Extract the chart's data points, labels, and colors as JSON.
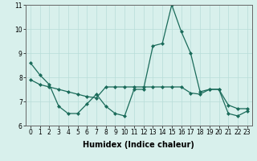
{
  "x": [
    0,
    1,
    2,
    3,
    4,
    5,
    6,
    7,
    8,
    9,
    10,
    11,
    12,
    13,
    14,
    15,
    16,
    17,
    18,
    19,
    20,
    21,
    22,
    23
  ],
  "line1_y": [
    8.6,
    8.1,
    7.7,
    6.8,
    6.5,
    6.5,
    6.9,
    7.3,
    6.8,
    6.5,
    6.4,
    7.5,
    7.5,
    9.3,
    9.4,
    11.0,
    9.9,
    9.0,
    7.4,
    7.5,
    7.5,
    6.5,
    6.4,
    6.6
  ],
  "line2_y": [
    7.9,
    7.7,
    7.6,
    7.5,
    7.4,
    7.3,
    7.2,
    7.15,
    7.6,
    7.6,
    7.6,
    7.6,
    7.6,
    7.6,
    7.6,
    7.6,
    7.6,
    7.35,
    7.3,
    7.5,
    7.5,
    6.85,
    6.7,
    6.7
  ],
  "line_color": "#1a6b5a",
  "bg_color": "#d8f0ec",
  "grid_color": "#b8ddd8",
  "xlabel": "Humidex (Indice chaleur)",
  "ylim": [
    6,
    11
  ],
  "xlim_min": -0.5,
  "xlim_max": 23.5,
  "yticks": [
    6,
    7,
    8,
    9,
    10,
    11
  ],
  "xticks": [
    0,
    1,
    2,
    3,
    4,
    5,
    6,
    7,
    8,
    9,
    10,
    11,
    12,
    13,
    14,
    15,
    16,
    17,
    18,
    19,
    20,
    21,
    22,
    23
  ],
  "tick_fontsize": 5.5,
  "label_fontsize": 7.0,
  "marker": "D",
  "marker_size": 2.0,
  "linewidth": 0.9
}
